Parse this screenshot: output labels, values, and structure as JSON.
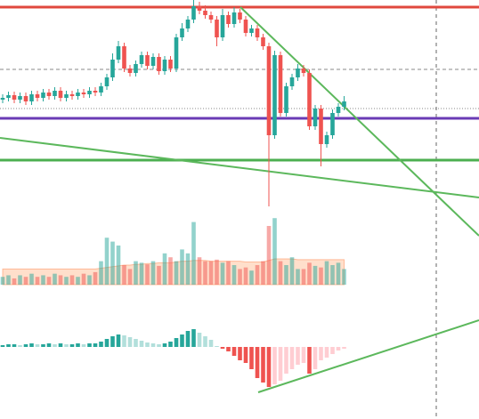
{
  "chart_data": [
    {
      "type": "candlestick",
      "open": [
        120,
        122,
        125,
        120,
        124,
        118,
        126,
        122,
        128,
        124,
        130,
        122,
        126,
        124,
        128,
        126,
        130,
        128,
        135,
        145,
        165,
        180,
        155,
        150,
        160,
        170,
        158,
        168,
        152,
        165,
        155,
        190,
        200,
        210,
        225,
        220,
        215,
        210,
        190,
        215,
        205,
        218,
        210,
        195,
        200,
        190,
        180,
        80,
        170,
        105,
        135,
        145,
        155,
        150,
        90,
        110,
        70,
        80,
        105,
        112
      ],
      "high": [
        126,
        129,
        129,
        128,
        128,
        130,
        130,
        132,
        132,
        134,
        134,
        130,
        130,
        132,
        132,
        134,
        134,
        139,
        149,
        172,
        186,
        184,
        159,
        164,
        174,
        174,
        172,
        172,
        169,
        169,
        194,
        206,
        214,
        232,
        230,
        226,
        219,
        214,
        222,
        219,
        224,
        222,
        214,
        204,
        204,
        194,
        184,
        175,
        174,
        139,
        149,
        160,
        159,
        154,
        114,
        114,
        84,
        109,
        116,
        124
      ],
      "low": [
        116,
        118,
        116,
        116,
        114,
        114,
        118,
        118,
        120,
        120,
        118,
        118,
        120,
        120,
        122,
        122,
        124,
        124,
        131,
        141,
        161,
        151,
        146,
        146,
        156,
        154,
        154,
        148,
        148,
        151,
        151,
        186,
        196,
        206,
        216,
        211,
        206,
        180,
        186,
        201,
        201,
        206,
        191,
        191,
        186,
        176,
        0,
        76,
        101,
        101,
        131,
        141,
        146,
        86,
        86,
        45,
        66,
        76,
        101,
        108
      ],
      "close": [
        122,
        125,
        120,
        124,
        118,
        126,
        122,
        128,
        124,
        130,
        122,
        126,
        124,
        128,
        126,
        130,
        128,
        135,
        145,
        165,
        180,
        155,
        150,
        160,
        170,
        158,
        168,
        152,
        165,
        155,
        190,
        200,
        210,
        225,
        220,
        215,
        210,
        190,
        215,
        205,
        218,
        210,
        195,
        200,
        190,
        180,
        80,
        170,
        105,
        135,
        145,
        155,
        150,
        90,
        110,
        70,
        80,
        105,
        112,
        118
      ],
      "up_color": "#26a69a",
      "down_color": "#ef5350",
      "ylim": [
        0,
        232
      ]
    },
    {
      "type": "volume",
      "values": [
        10,
        12,
        8,
        12,
        10,
        14,
        10,
        12,
        10,
        14,
        12,
        10,
        12,
        10,
        14,
        12,
        16,
        30,
        60,
        55,
        50,
        25,
        20,
        30,
        28,
        26,
        30,
        24,
        40,
        35,
        30,
        45,
        40,
        80,
        35,
        30,
        30,
        32,
        28,
        30,
        25,
        20,
        22,
        18,
        25,
        30,
        75,
        85,
        30,
        25,
        35,
        20,
        20,
        28,
        24,
        22,
        30,
        25,
        28,
        20
      ],
      "ma": [
        20,
        20,
        20,
        20,
        20,
        20,
        20,
        20,
        20,
        20,
        20,
        20,
        20,
        20,
        20,
        20,
        20,
        21,
        22,
        23,
        24,
        25,
        25,
        26,
        26,
        27,
        27,
        28,
        28,
        28,
        29,
        30,
        30,
        31,
        31,
        31,
        30,
        30,
        30,
        30,
        30,
        30,
        29,
        29,
        29,
        29,
        31,
        33,
        33,
        33,
        33,
        32,
        32,
        32,
        32,
        32,
        32,
        32,
        32,
        32
      ],
      "up_color": "rgba(38,166,154,0.5)",
      "down_color": "rgba(239,83,80,0.5)",
      "ma_color": "rgba(255,183,140,0.45)",
      "ylim": [
        0,
        100
      ]
    },
    {
      "type": "histogram",
      "values": [
        2,
        3,
        3,
        2,
        3,
        4,
        3,
        3,
        4,
        3,
        4,
        3,
        3,
        4,
        3,
        4,
        4,
        6,
        9,
        12,
        14,
        13,
        11,
        9,
        7,
        5,
        4,
        3,
        4,
        6,
        10,
        14,
        18,
        20,
        16,
        12,
        8,
        1,
        -2,
        -5,
        -10,
        -15,
        -18,
        -25,
        -35,
        -40,
        -45,
        -42,
        -38,
        -30,
        -25,
        -20,
        -18,
        -30,
        -25,
        -15,
        -12,
        -8,
        -4,
        -2
      ],
      "colors": [
        "#26a69a",
        "#b2dfdb",
        "#ef5350",
        "#ffcdd2"
      ],
      "ylim": [
        -60,
        60
      ]
    }
  ]
}
